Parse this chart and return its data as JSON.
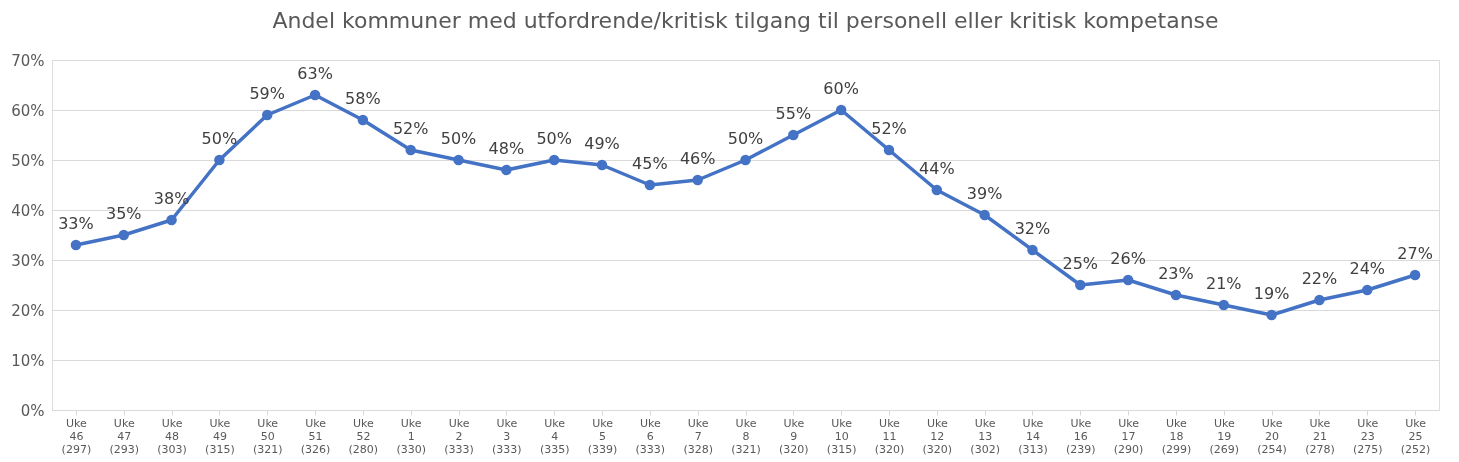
{
  "chart_data": {
    "type": "line",
    "title": "Andel kommuner med utfordrende/kritisk tilgang til personell eller kritisk kompetanse",
    "categories": [
      "Uke 46 (297)",
      "Uke 47 (293)",
      "Uke 48 (303)",
      "Uke 49 (315)",
      "Uke 50 (321)",
      "Uke 51 (326)",
      "Uke 52 (280)",
      "Uke 1 (330)",
      "Uke 2 (333)",
      "Uke 3 (333)",
      "Uke 4 (335)",
      "Uke 5 (339)",
      "Uke 6 (333)",
      "Uke 7 (328)",
      "Uke 8 (321)",
      "Uke 9 (320)",
      "Uke 10 (315)",
      "Uke 11 (320)",
      "Uke 12 (320)",
      "Uke 13 (302)",
      "Uke 14 (313)",
      "Uke 16 (239)",
      "Uke 17 (290)",
      "Uke 18 (299)",
      "Uke 19 (269)",
      "Uke 20 (254)",
      "Uke 21 (278)",
      "Uke 23 (275)",
      "Uke 25 (252)"
    ],
    "series": [
      {
        "color": "#4472c4",
        "values": [
          33,
          35,
          38,
          50,
          59,
          63,
          58,
          52,
          50,
          48,
          50,
          49,
          45,
          46,
          50,
          55,
          60,
          52,
          44,
          39,
          32,
          25,
          26,
          23,
          21,
          19,
          22,
          24,
          27
        ],
        "value_labels": [
          "33%",
          "35%",
          "38%",
          "50%",
          "59%",
          "63%",
          "58%",
          "52%",
          "50%",
          "48%",
          "50%",
          "49%",
          "45%",
          "46%",
          "50%",
          "55%",
          "60%",
          "52%",
          "44%",
          "39%",
          "32%",
          "25%",
          "26%",
          "23%",
          "21%",
          "19%",
          "22%",
          "24%",
          "27%"
        ]
      }
    ],
    "ylim": [
      0,
      70
    ],
    "yticks": [
      {
        "value": 0,
        "label": "0%"
      },
      {
        "value": 10,
        "label": "10%"
      },
      {
        "value": 20,
        "label": "20%"
      },
      {
        "value": 30,
        "label": "30%"
      },
      {
        "value": 40,
        "label": "40%"
      },
      {
        "value": 50,
        "label": "50%"
      },
      {
        "value": 60,
        "label": "60%"
      },
      {
        "value": 70,
        "label": "70%"
      }
    ],
    "grid": "y",
    "marker": "circle",
    "line_style": "solid"
  }
}
